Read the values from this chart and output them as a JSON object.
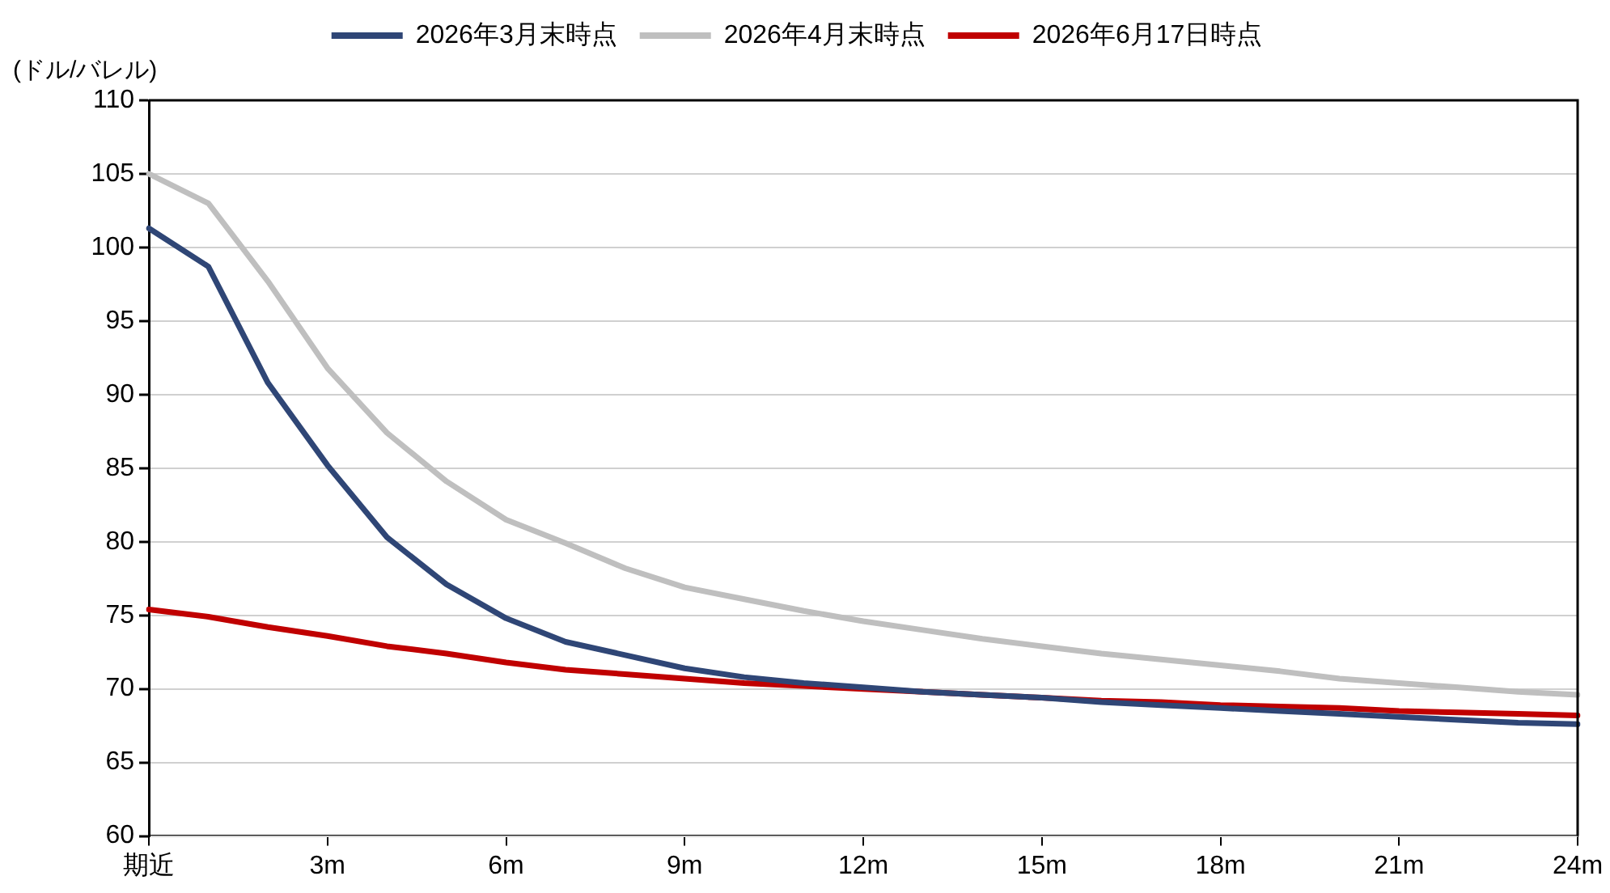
{
  "chart_data": {
    "type": "line",
    "ylabel": "(ドル/バレル)",
    "categories": [
      "期近",
      null,
      null,
      "3m",
      null,
      null,
      "6m",
      null,
      null,
      "9m",
      null,
      null,
      "12m",
      null,
      null,
      "15m",
      null,
      null,
      "18m",
      null,
      null,
      "21m",
      null,
      null,
      "24m"
    ],
    "series": [
      {
        "name": "2026年3月末時点",
        "color": "#2f4676",
        "values": [
          101.3,
          98.7,
          90.8,
          85.2,
          80.3,
          77.1,
          74.8,
          73.2,
          72.3,
          71.4,
          70.8,
          70.4,
          70.1,
          69.8,
          69.6,
          69.4,
          69.1,
          68.9,
          68.7,
          68.5,
          68.3,
          68.1,
          67.9,
          67.7,
          67.6
        ]
      },
      {
        "name": "2026年4月末時点",
        "color": "#bfbfbf",
        "values": [
          105,
          103,
          97.7,
          91.8,
          87.4,
          84.1,
          81.5,
          79.9,
          78.2,
          76.9,
          76.1,
          75.3,
          74.6,
          74.0,
          73.4,
          72.9,
          72.4,
          72.0,
          71.6,
          71.2,
          70.7,
          70.4,
          70.1,
          69.8,
          69.6
        ]
      },
      {
        "name": "2026年6月17日時点",
        "color": "#c00000",
        "values": [
          75.4,
          74.9,
          74.2,
          73.6,
          72.9,
          72.4,
          71.8,
          71.3,
          71.0,
          70.7,
          70.4,
          70.2,
          70.0,
          69.8,
          69.6,
          69.4,
          69.2,
          69.1,
          68.9,
          68.8,
          68.7,
          68.5,
          68.4,
          68.3,
          68.2
        ]
      }
    ],
    "ylim": [
      60,
      110
    ],
    "yticks": [
      60,
      65,
      70,
      75,
      80,
      85,
      90,
      95,
      100,
      105,
      110
    ],
    "grid": "y",
    "legend": "top",
    "marker": "none",
    "line_style": "solid"
  }
}
